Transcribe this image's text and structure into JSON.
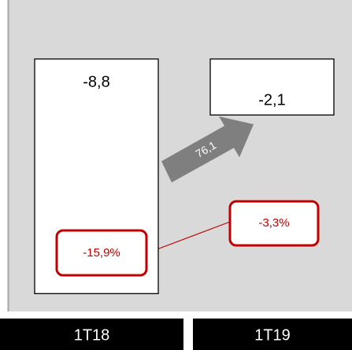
{
  "chart_data": {
    "type": "bar",
    "categories": [
      "1T18",
      "1T19"
    ],
    "values": [
      -8.8,
      -2.1
    ],
    "value_labels": [
      "-8,8",
      "-2,1"
    ],
    "ylim": [
      -10,
      0
    ],
    "color": "#ffffff",
    "margin_labels": [
      "-15,9%",
      "-3,3%"
    ],
    "change_label": "76,1"
  }
}
